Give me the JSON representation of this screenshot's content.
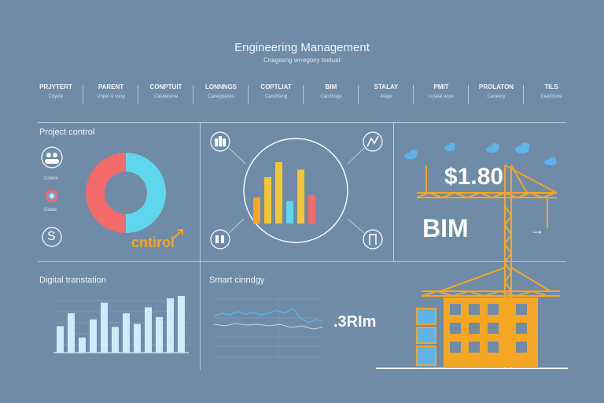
{
  "header": {
    "title": "Engineering Management",
    "subtitle": "Cnagesng wrregony tsetuet"
  },
  "nav": [
    {
      "label": "PRJYTERT",
      "sub": "Cnyete"
    },
    {
      "label": "PARENT",
      "sub": "Unpel & ssng"
    },
    {
      "label": "CONPTUIT",
      "sub": "Caseecene"
    },
    {
      "label": "LONNNGS",
      "sub": "Caneppaces"
    },
    {
      "label": "COPTLIAT",
      "sub": "Cacensing"
    },
    {
      "label": "BIM",
      "sub": "Cacrlhoge"
    },
    {
      "label": "STALAY",
      "sub": "Alage"
    },
    {
      "label": "PMIT",
      "sub": "Luseal aspe"
    },
    {
      "label": "PROLATON",
      "sub": "Caneery"
    },
    {
      "label": "TILS",
      "sub": "Cealctune"
    }
  ],
  "panels": {
    "project_control": {
      "label": "Project control",
      "icons": [
        "people-icon",
        "chart-circle-icon",
        "dollar-icon"
      ],
      "icon_captions": [
        "Coane",
        "Coate"
      ],
      "donut_slices": [
        {
          "value": 50,
          "color": "#5fd6ee"
        },
        {
          "value": 50,
          "color": "#f26a6a"
        }
      ],
      "brand_text": "cntirol",
      "brand_color": "#f5a623",
      "dollar_glyph": "S"
    },
    "center_chart": {
      "icons": [
        "team-icon",
        "trend-icon",
        "documents-icon",
        "fork-icon"
      ],
      "bars": [
        {
          "value": 35,
          "color": "#f5a623"
        },
        {
          "value": 62,
          "color": "#f7c531"
        },
        {
          "value": 82,
          "color": "#f7c531"
        },
        {
          "value": 30,
          "color": "#5fd6ee"
        },
        {
          "value": 72,
          "color": "#f7c531"
        },
        {
          "value": 38,
          "color": "#f26a6a"
        }
      ]
    },
    "bim": {
      "amount": "$1.80",
      "label": "BIM",
      "arrow": "→",
      "accent": "#f5a623",
      "box_color": "#5fb3e8"
    },
    "digital": {
      "label": "Digital transtation",
      "bars": [
        35,
        52,
        20,
        44,
        66,
        34,
        52,
        38,
        60,
        47,
        72,
        75
      ]
    },
    "smart": {
      "label": "Smart cinndgy",
      "value": ".3RIm"
    }
  }
}
